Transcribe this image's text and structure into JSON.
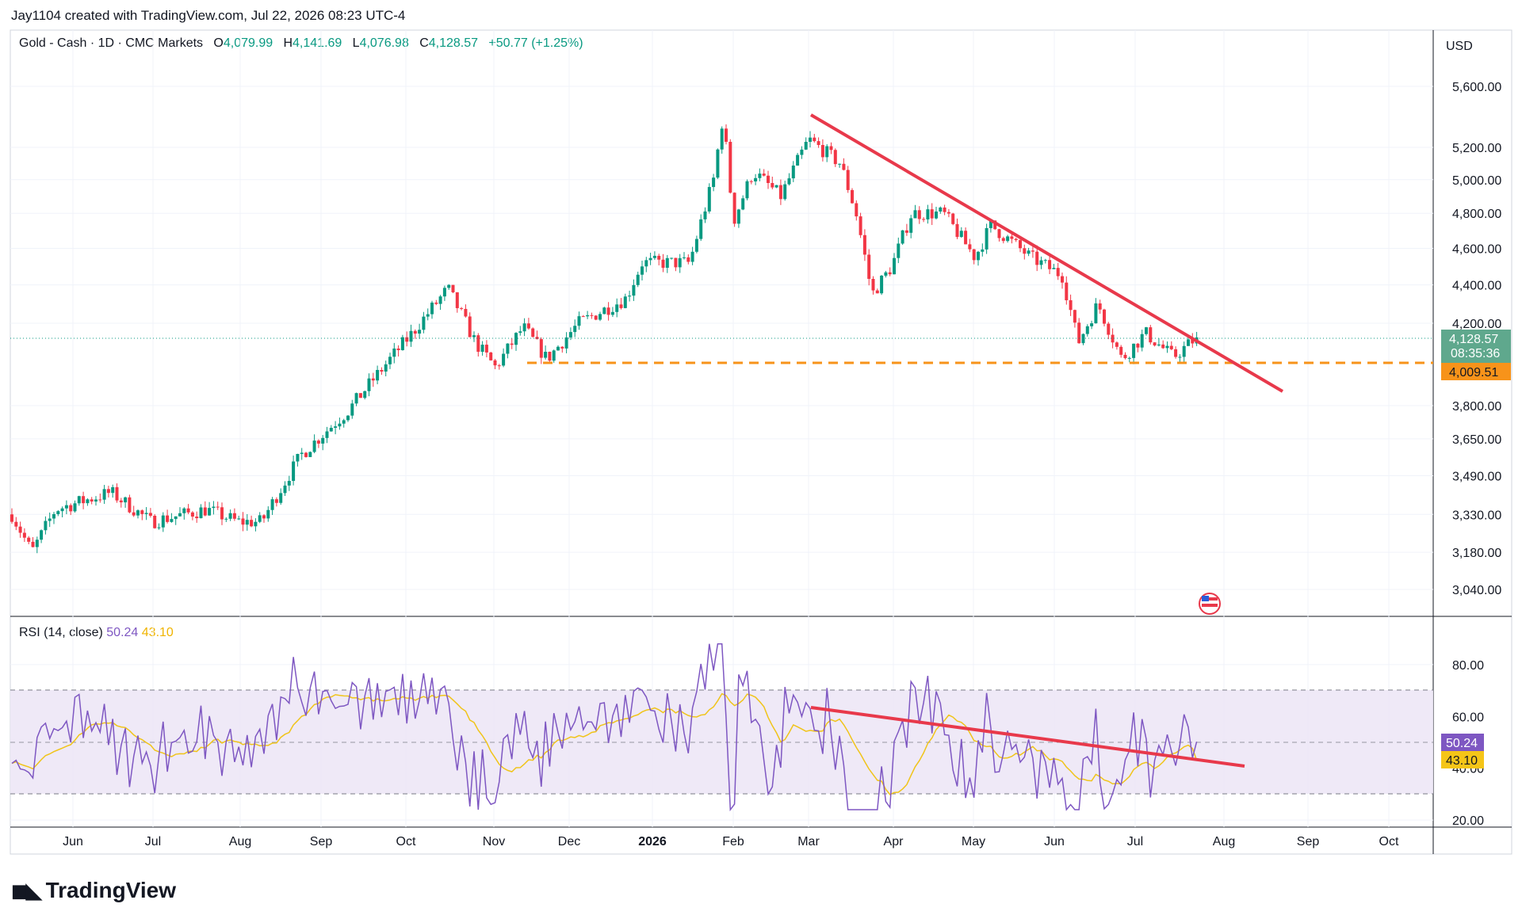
{
  "header": {
    "attribution": "Jay1104 created with TradingView.com, Jul 22, 2026 08:23 UTC-4"
  },
  "legend": {
    "symbol": "Gold - Cash · 1D · CMC Markets",
    "open_label": "O",
    "open": "4,079.99",
    "high_label": "H",
    "high": "4,141.69",
    "low_label": "L",
    "low": "4,076.98",
    "close_label": "C",
    "close": "4,128.57",
    "change": "+50.77 (+1.25%)"
  },
  "currency": "USD",
  "price_tags": {
    "last_price": "4,128.57",
    "countdown": "08:35:36",
    "support": "4,009.51"
  },
  "rsi_legend": {
    "label": "RSI (14, close)",
    "rsi_value": "50.24",
    "ma_value": "43.10"
  },
  "rsi_tags": {
    "rsi": "50.24",
    "ma": "43.10"
  },
  "brand": {
    "name": "TradingView"
  },
  "colors": {
    "up": "#089981",
    "down": "#f23645",
    "trendline": "#e8394b",
    "support": "#f7931a",
    "rsi": "#7e57c2",
    "rsi_ma": "#f0c419",
    "rsi_band": "#ede7f6",
    "grid": "#f0f3fa"
  },
  "chart_data": [
    {
      "type": "candlestick",
      "title": "Gold - Cash · 1D · CMC Markets",
      "price_axis_ticks": [
        3040,
        3180,
        3330,
        3490,
        3650,
        3800,
        4200,
        4400,
        4600,
        4800,
        5000,
        5200,
        5600
      ],
      "price_axis_labels": [
        "3,040.00",
        "3,180.00",
        "3,330.00",
        "3,490.00",
        "3,650.00",
        "3,800.00",
        "4,200.00",
        "4,400.00",
        "4,600.00",
        "4,800.00",
        "5,000.00",
        "5,200.00",
        "5,600.00"
      ],
      "time_axis_labels": [
        "Jun",
        "Jul",
        "Aug",
        "Sep",
        "Oct",
        "Nov",
        "Dec",
        "2026",
        "Feb",
        "Mar",
        "Apr",
        "May",
        "Jun",
        "Jul",
        "Aug",
        "Sep",
        "Oct"
      ],
      "scale": "log",
      "last_close": 4128.57,
      "horizontal_support": 4009.51,
      "trendline": {
        "from": {
          "date": "Mar",
          "price": 5400
        },
        "to": {
          "date": "Aug",
          "price": 3880
        }
      },
      "monthly_closes": [
        {
          "month": "Jun",
          "close": 3330
        },
        {
          "month": "Jul",
          "close": 3300
        },
        {
          "month": "Aug",
          "close": 3390
        },
        {
          "month": "Sep",
          "close": 3700
        },
        {
          "month": "Oct",
          "close": 4300
        },
        {
          "month": "Nov",
          "close": 4050
        },
        {
          "month": "Dec",
          "close": 4200
        },
        {
          "month": "2026",
          "close": 4500
        },
        {
          "month": "Feb",
          "close": 5100
        },
        {
          "month": "Mar",
          "close": 5300
        },
        {
          "month": "Apr",
          "close": 4600
        },
        {
          "month": "May",
          "close": 4700
        },
        {
          "month": "Jun",
          "close": 4450
        },
        {
          "month": "Jul",
          "close": 4050
        },
        {
          "month": "Jul end",
          "close": 4128.57
        }
      ]
    },
    {
      "type": "line",
      "title": "RSI (14, close)",
      "y_axis_labels": [
        "20.00",
        "40.00",
        "60.00",
        "80.00"
      ],
      "ylim": [
        20,
        90
      ],
      "bands": [
        30,
        50,
        70
      ],
      "series": [
        {
          "name": "RSI",
          "last": 50.24
        },
        {
          "name": "MA",
          "last": 43.1
        }
      ],
      "trendline": {
        "from": {
          "date": "Mar",
          "value": 64
        },
        "to": {
          "date": "Aug",
          "value": 41.5
        }
      }
    }
  ]
}
